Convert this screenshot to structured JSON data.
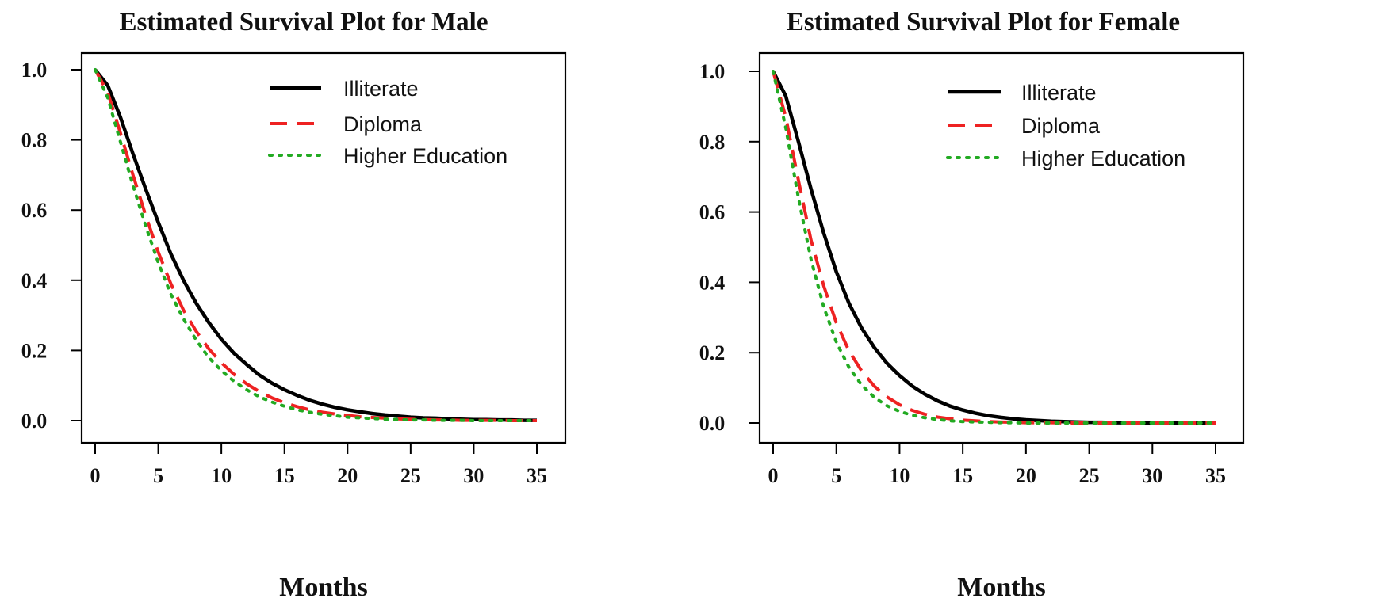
{
  "chart_data": [
    {
      "type": "line",
      "title": "Estimated Survival Plot for Male",
      "xlabel": "Months",
      "ylabel": "",
      "xlim": [
        0,
        35
      ],
      "ylim": [
        0,
        1
      ],
      "xticks": [
        "0",
        "5",
        "10",
        "15",
        "20",
        "25",
        "30",
        "35"
      ],
      "yticks": [
        "0.0",
        "0.2",
        "0.4",
        "0.6",
        "0.8",
        "1.0"
      ],
      "grid": false,
      "legend_position": "top-right",
      "x": [
        0,
        1,
        2,
        3,
        4,
        5,
        6,
        7,
        8,
        9,
        10,
        11,
        12,
        13,
        14,
        15,
        16,
        17,
        18,
        19,
        20,
        21,
        22,
        23,
        24,
        25,
        26,
        27,
        28,
        29,
        30,
        31,
        32,
        33,
        34,
        35
      ],
      "series": [
        {
          "name": "Illiterate",
          "color": "#000000",
          "style": "solid",
          "values": [
            1.0,
            0.955,
            0.865,
            0.76,
            0.66,
            0.565,
            0.475,
            0.4,
            0.335,
            0.28,
            0.232,
            0.192,
            0.16,
            0.13,
            0.107,
            0.088,
            0.072,
            0.058,
            0.047,
            0.038,
            0.031,
            0.025,
            0.02,
            0.016,
            0.013,
            0.01,
            0.008,
            0.007,
            0.005,
            0.004,
            0.003,
            0.003,
            0.002,
            0.002,
            0.001,
            0.001
          ]
        },
        {
          "name": "Diploma",
          "color": "#ee2222",
          "style": "dashed",
          "values": [
            1.0,
            0.935,
            0.82,
            0.7,
            0.585,
            0.48,
            0.39,
            0.315,
            0.255,
            0.205,
            0.165,
            0.132,
            0.105,
            0.083,
            0.065,
            0.051,
            0.04,
            0.031,
            0.024,
            0.019,
            0.015,
            0.011,
            0.009,
            0.007,
            0.005,
            0.004,
            0.003,
            0.002,
            0.002,
            0.001,
            0.001,
            0.001,
            0.001,
            0.0,
            0.0,
            0.0
          ]
        },
        {
          "name": "Higher Education",
          "color": "#22aa22",
          "style": "dotted",
          "values": [
            1.0,
            0.92,
            0.795,
            0.67,
            0.555,
            0.45,
            0.36,
            0.29,
            0.23,
            0.18,
            0.143,
            0.112,
            0.088,
            0.068,
            0.053,
            0.041,
            0.031,
            0.024,
            0.018,
            0.014,
            0.01,
            0.008,
            0.006,
            0.004,
            0.003,
            0.002,
            0.002,
            0.001,
            0.001,
            0.001,
            0.0,
            0.0,
            0.0,
            0.0,
            0.0,
            0.0
          ]
        }
      ]
    },
    {
      "type": "line",
      "title": "Estimated Survival Plot for Female",
      "xlabel": "Months",
      "ylabel": "",
      "xlim": [
        0,
        35
      ],
      "ylim": [
        0,
        1
      ],
      "xticks": [
        "0",
        "5",
        "10",
        "15",
        "20",
        "25",
        "30",
        "35"
      ],
      "yticks": [
        "0.0",
        "0.2",
        "0.4",
        "0.6",
        "0.8",
        "1.0"
      ],
      "grid": false,
      "legend_position": "top-right",
      "x": [
        0,
        1,
        2,
        3,
        4,
        5,
        6,
        7,
        8,
        9,
        10,
        11,
        12,
        13,
        14,
        15,
        16,
        17,
        18,
        19,
        20,
        21,
        22,
        23,
        24,
        25,
        26,
        27,
        28,
        29,
        30,
        31,
        32,
        33,
        34,
        35
      ],
      "series": [
        {
          "name": "Illiterate",
          "color": "#000000",
          "style": "solid",
          "values": [
            1.0,
            0.93,
            0.8,
            0.665,
            0.54,
            0.43,
            0.34,
            0.27,
            0.215,
            0.17,
            0.135,
            0.105,
            0.082,
            0.063,
            0.048,
            0.037,
            0.028,
            0.021,
            0.016,
            0.012,
            0.009,
            0.007,
            0.005,
            0.004,
            0.003,
            0.002,
            0.002,
            0.001,
            0.001,
            0.001,
            0.0,
            0.0,
            0.0,
            0.0,
            0.0,
            0.0
          ]
        },
        {
          "name": "Diploma",
          "color": "#ee2222",
          "style": "dashed",
          "values": [
            1.0,
            0.87,
            0.69,
            0.52,
            0.39,
            0.285,
            0.205,
            0.148,
            0.105,
            0.074,
            0.052,
            0.036,
            0.025,
            0.017,
            0.012,
            0.008,
            0.006,
            0.004,
            0.003,
            0.002,
            0.001,
            0.001,
            0.001,
            0.0,
            0.0,
            0.0,
            0.0,
            0.0,
            0.0,
            0.0,
            0.0,
            0.0,
            0.0,
            0.0,
            0.0,
            0.0
          ]
        },
        {
          "name": "Higher Education",
          "color": "#22aa22",
          "style": "dotted",
          "values": [
            1.0,
            0.84,
            0.64,
            0.465,
            0.33,
            0.23,
            0.158,
            0.108,
            0.073,
            0.049,
            0.033,
            0.022,
            0.015,
            0.01,
            0.006,
            0.004,
            0.003,
            0.002,
            0.001,
            0.001,
            0.0,
            0.0,
            0.0,
            0.0,
            0.0,
            0.0,
            0.0,
            0.0,
            0.0,
            0.0,
            0.0,
            0.0,
            0.0,
            0.0,
            0.0,
            0.0
          ]
        }
      ]
    }
  ]
}
